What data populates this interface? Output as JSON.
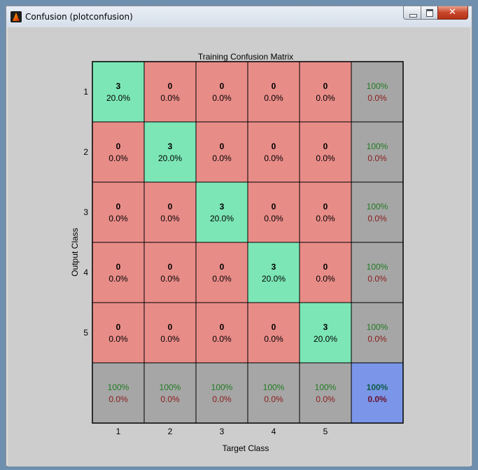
{
  "window": {
    "title": "Confusion (plotconfusion)"
  },
  "colors": {
    "correct": "#7ce6b6",
    "incorrect": "#e88c88",
    "summary": "#a6a6a6",
    "overall": "#7b96e8",
    "green_text": "#1f7a1f",
    "red_text": "#8b1a1a"
  },
  "chart_data": {
    "type": "heatmap",
    "title": "Training Confusion Matrix",
    "xlabel": "Target Class",
    "ylabel": "Output Class",
    "x_tick_labels": [
      "1",
      "2",
      "3",
      "4",
      "5"
    ],
    "y_tick_labels": [
      "1",
      "2",
      "3",
      "4",
      "5"
    ],
    "counts": [
      [
        3,
        0,
        0,
        0,
        0
      ],
      [
        0,
        3,
        0,
        0,
        0
      ],
      [
        0,
        0,
        3,
        0,
        0
      ],
      [
        0,
        0,
        0,
        3,
        0
      ],
      [
        0,
        0,
        0,
        0,
        3
      ]
    ],
    "percents": [
      [
        "20.0%",
        "0.0%",
        "0.0%",
        "0.0%",
        "0.0%"
      ],
      [
        "0.0%",
        "20.0%",
        "0.0%",
        "0.0%",
        "0.0%"
      ],
      [
        "0.0%",
        "0.0%",
        "20.0%",
        "0.0%",
        "0.0%"
      ],
      [
        "0.0%",
        "0.0%",
        "0.0%",
        "20.0%",
        "0.0%"
      ],
      [
        "0.0%",
        "0.0%",
        "0.0%",
        "0.0%",
        "20.0%"
      ]
    ],
    "row_summary": [
      {
        "correct": "100%",
        "incorrect": "0.0%"
      },
      {
        "correct": "100%",
        "incorrect": "0.0%"
      },
      {
        "correct": "100%",
        "incorrect": "0.0%"
      },
      {
        "correct": "100%",
        "incorrect": "0.0%"
      },
      {
        "correct": "100%",
        "incorrect": "0.0%"
      }
    ],
    "column_summary": [
      {
        "correct": "100%",
        "incorrect": "0.0%"
      },
      {
        "correct": "100%",
        "incorrect": "0.0%"
      },
      {
        "correct": "100%",
        "incorrect": "0.0%"
      },
      {
        "correct": "100%",
        "incorrect": "0.0%"
      },
      {
        "correct": "100%",
        "incorrect": "0.0%"
      }
    ],
    "overall": {
      "correct": "100%",
      "incorrect": "0.0%"
    }
  }
}
